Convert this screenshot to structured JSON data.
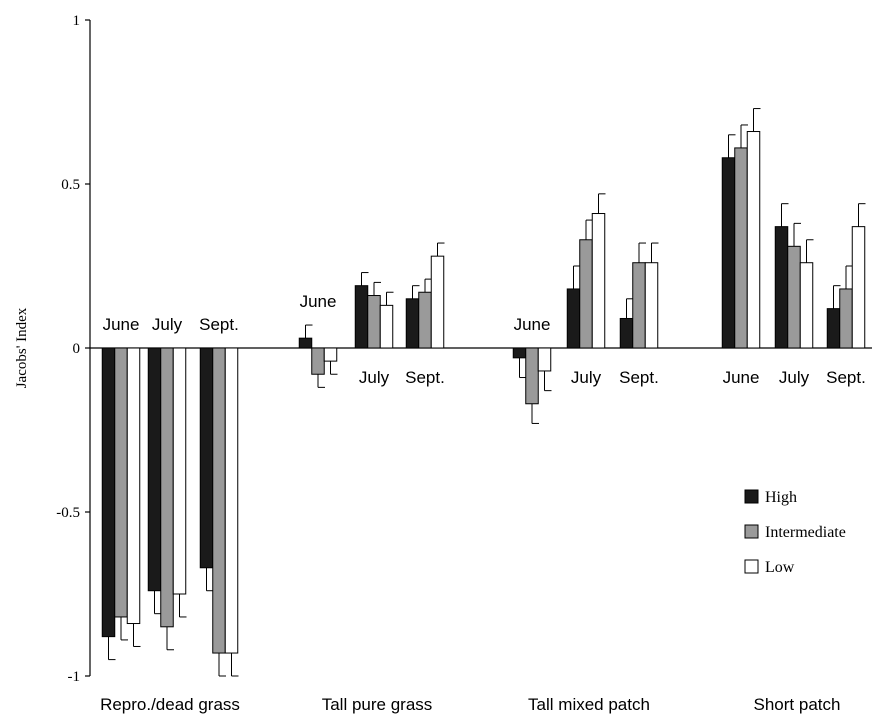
{
  "chart_data": {
    "type": "bar",
    "ylabel": "Jacobs' Index",
    "ylim": [
      -1,
      1
    ],
    "yticks": [
      {
        "value": 1,
        "label": "1"
      },
      {
        "value": 0.5,
        "label": "0.5"
      },
      {
        "value": 0,
        "label": "0"
      },
      {
        "value": -0.5,
        "label": "-0.5"
      },
      {
        "value": -1,
        "label": "-1"
      }
    ],
    "groups": [
      "Repro./dead grass",
      "Tall pure grass",
      "Tall mixed patch",
      "Short patch"
    ],
    "months": [
      "June",
      "July",
      "Sept."
    ],
    "series": [
      {
        "name": "High",
        "color": "#1a1a1a",
        "values": [
          [
            -0.88,
            -0.74,
            -0.67
          ],
          [
            0.03,
            0.19,
            0.15
          ],
          [
            -0.03,
            0.18,
            0.09
          ],
          [
            0.58,
            0.37,
            0.12
          ]
        ],
        "errors": [
          [
            0.07,
            0.07,
            0.07
          ],
          [
            0.04,
            0.04,
            0.04
          ],
          [
            0.06,
            0.07,
            0.06
          ],
          [
            0.07,
            0.07,
            0.07
          ]
        ]
      },
      {
        "name": "Intermediate",
        "color": "#9a9a9a",
        "values": [
          [
            -0.82,
            -0.85,
            -0.93
          ],
          [
            -0.08,
            0.16,
            0.17
          ],
          [
            -0.17,
            0.33,
            0.26
          ],
          [
            0.61,
            0.31,
            0.18
          ]
        ],
        "errors": [
          [
            0.07,
            0.07,
            0.07
          ],
          [
            0.04,
            0.04,
            0.04
          ],
          [
            0.06,
            0.06,
            0.06
          ],
          [
            0.07,
            0.07,
            0.07
          ]
        ]
      },
      {
        "name": "Low",
        "color": "#ffffff",
        "values": [
          [
            -0.84,
            -0.75,
            -0.93
          ],
          [
            -0.04,
            0.13,
            0.28
          ],
          [
            -0.07,
            0.41,
            0.26
          ],
          [
            0.66,
            0.26,
            0.37
          ]
        ],
        "errors": [
          [
            0.07,
            0.07,
            0.07
          ],
          [
            0.04,
            0.04,
            0.04
          ],
          [
            0.06,
            0.06,
            0.06
          ],
          [
            0.07,
            0.07,
            0.07
          ]
        ]
      }
    ],
    "month_label_placement": [
      [
        "above",
        "above",
        "above"
      ],
      [
        "above",
        "below",
        "below"
      ],
      [
        "above",
        "below",
        "below"
      ],
      [
        "below",
        "below",
        "below"
      ]
    ],
    "legend": {
      "placement": "right",
      "entries": [
        "High",
        "Intermediate",
        "Low"
      ]
    },
    "grid": false
  }
}
